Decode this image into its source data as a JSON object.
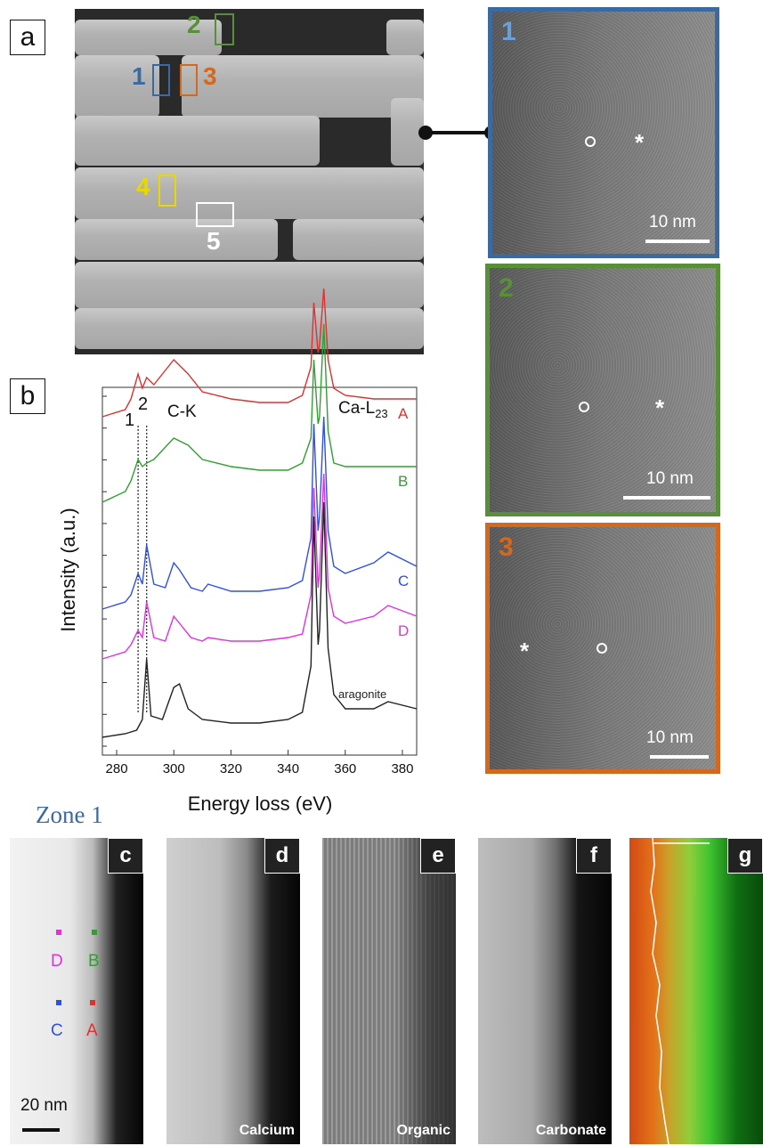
{
  "panel_a": {
    "letter": "a",
    "regions": [
      {
        "label": "1",
        "color": "#3b6aa0"
      },
      {
        "label": "2",
        "color": "#5a8f3a"
      },
      {
        "label": "3",
        "color": "#d2691e"
      },
      {
        "label": "4",
        "color": "#e8d800"
      },
      {
        "label": "5",
        "color": "#ffffff"
      }
    ]
  },
  "tem_panels": [
    {
      "label": "1",
      "color": "#3b6aa0",
      "label_color": "#6a9fd8",
      "scale": "10 nm"
    },
    {
      "label": "2",
      "color": "#5a8f3a",
      "label_color": "#5a8f3a",
      "scale": "10 nm"
    },
    {
      "label": "3",
      "color": "#d2691e",
      "label_color": "#d2691e",
      "scale": "10 nm"
    }
  ],
  "panel_b": {
    "letter": "b",
    "peak_labels": [
      "1",
      "2"
    ],
    "edge_labels": [
      "C-K",
      "Ca-L",
      "23"
    ]
  },
  "chart_data": {
    "type": "line",
    "xlabel": "Energy loss (eV)",
    "ylabel": "Intensity (a.u.)",
    "xlim": [
      275,
      385
    ],
    "xticks": [
      280,
      300,
      320,
      340,
      360,
      380
    ],
    "peak_markers_x": [
      287.5,
      290.5
    ],
    "series": [
      {
        "name": "A",
        "color": "#e03030",
        "offset": 0.9,
        "x": [
          275,
          283,
          285,
          287.5,
          289,
          290.5,
          293,
          300,
          305,
          310,
          320,
          330,
          340,
          345,
          348,
          349,
          350.5,
          351,
          352.5,
          354,
          356,
          360,
          370,
          385
        ],
        "y": [
          0,
          0.02,
          0.05,
          0.12,
          0.08,
          0.11,
          0.09,
          0.16,
          0.12,
          0.07,
          0.05,
          0.04,
          0.04,
          0.06,
          0.14,
          0.32,
          0.18,
          0.2,
          0.36,
          0.16,
          0.08,
          0.06,
          0.05,
          0.05
        ]
      },
      {
        "name": "B",
        "color": "#30a030",
        "offset": 0.66,
        "x": [
          275,
          283,
          285,
          287.5,
          289,
          290.5,
          293,
          300,
          305,
          310,
          320,
          330,
          340,
          345,
          348,
          349,
          350.5,
          351,
          352.5,
          354,
          356,
          360,
          370,
          385
        ],
        "y": [
          0,
          0.03,
          0.06,
          0.12,
          0.1,
          0.11,
          0.12,
          0.18,
          0.16,
          0.12,
          0.1,
          0.09,
          0.09,
          0.11,
          0.18,
          0.4,
          0.22,
          0.24,
          0.5,
          0.2,
          0.11,
          0.1,
          0.1,
          0.1
        ]
      },
      {
        "name": "C",
        "color": "#3050e0",
        "offset": 0.36,
        "x": [
          275,
          283,
          285,
          287.5,
          289,
          290.5,
          293,
          297,
          300,
          302,
          306,
          310,
          312,
          320,
          330,
          340,
          345,
          348,
          349,
          350.5,
          351,
          352.5,
          354,
          356,
          360,
          370,
          375,
          385
        ],
        "y": [
          0,
          0.02,
          0.04,
          0.1,
          0.07,
          0.18,
          0.07,
          0.06,
          0.13,
          0.11,
          0.06,
          0.05,
          0.07,
          0.05,
          0.05,
          0.06,
          0.08,
          0.2,
          0.52,
          0.22,
          0.26,
          0.54,
          0.22,
          0.12,
          0.1,
          0.13,
          0.16,
          0.12
        ]
      },
      {
        "name": "D",
        "color": "#e030e0",
        "offset": 0.22,
        "x": [
          275,
          283,
          285,
          287.5,
          289,
          290.5,
          293,
          297,
          300,
          302,
          306,
          310,
          312,
          320,
          330,
          340,
          345,
          348,
          349,
          350.5,
          351,
          352.5,
          354,
          356,
          360,
          370,
          375,
          385
        ],
        "y": [
          0,
          0.02,
          0.04,
          0.08,
          0.06,
          0.16,
          0.06,
          0.05,
          0.12,
          0.1,
          0.06,
          0.05,
          0.06,
          0.05,
          0.05,
          0.06,
          0.07,
          0.18,
          0.48,
          0.2,
          0.24,
          0.52,
          0.2,
          0.12,
          0.1,
          0.12,
          0.15,
          0.12
        ]
      },
      {
        "name": "aragonite",
        "color": "#222222",
        "offset": 0.0,
        "x": [
          275,
          283,
          287,
          289,
          290.5,
          292,
          296,
          300,
          302,
          305,
          310,
          320,
          330,
          340,
          345,
          348,
          349,
          350.5,
          351,
          352.5,
          354,
          356,
          360,
          370,
          375,
          385
        ],
        "y": [
          0,
          0.01,
          0.02,
          0.05,
          0.22,
          0.06,
          0.05,
          0.14,
          0.15,
          0.08,
          0.05,
          0.04,
          0.04,
          0.05,
          0.07,
          0.2,
          0.62,
          0.26,
          0.3,
          0.66,
          0.25,
          0.12,
          0.08,
          0.08,
          0.1,
          0.08
        ]
      }
    ]
  },
  "zone": {
    "title": "Zone 1"
  },
  "maps": [
    {
      "letter": "c",
      "caption": "",
      "scale": "20 nm"
    },
    {
      "letter": "d",
      "caption": "Calcium"
    },
    {
      "letter": "e",
      "caption": "Organic"
    },
    {
      "letter": "f",
      "caption": "Carbonate"
    },
    {
      "letter": "g",
      "caption": ""
    }
  ],
  "points": [
    {
      "label": "D",
      "color": "#e030e0"
    },
    {
      "label": "B",
      "color": "#30a030"
    },
    {
      "label": "C",
      "color": "#3050e0"
    },
    {
      "label": "A",
      "color": "#e03030"
    }
  ]
}
